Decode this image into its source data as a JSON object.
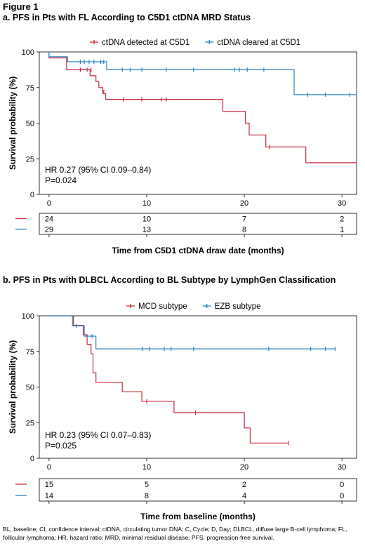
{
  "figure_label": "Figure 1",
  "colors": {
    "red": "#c8283c",
    "blue": "#2a86c4"
  },
  "footnote": "BL, baseline; CI, confidence interval; ctDNA, circulating tumor DNA; C, Cycle; D, Day; DLBCL, diffuse large B-cell lymphoma; FL, follicular lymphoma; HR, hazard ratio; MRD, minimal residual disease; PFS, progression-free survival.",
  "chart_data": [
    {
      "type": "line",
      "title": "a. PFS in Pts with FL According to C5D1 ctDNA MRD Status",
      "xlabel": "Time from C5D1 ctDNA draw date (months)",
      "ylabel": "Survival probability (%)",
      "xlim": [
        -1,
        31.5
      ],
      "ylim": [
        0,
        100
      ],
      "xticks": [
        0,
        10,
        20,
        30
      ],
      "yticks": [
        0,
        25,
        50,
        75,
        100
      ],
      "legend_position": "top",
      "annotation_hr": "HR 0.27 (95% CI 0.09–0.84)",
      "annotation_p": "P=0.024",
      "series": [
        {
          "name": "ctDNA detected at C5D1",
          "color": "#c8283c",
          "steps": [
            [
              0,
              100
            ],
            [
              0,
              95.8
            ],
            [
              1.8,
              95.8
            ],
            [
              1.8,
              87.5
            ],
            [
              4.2,
              87.5
            ],
            [
              4.2,
              83.3
            ],
            [
              4.8,
              83.3
            ],
            [
              4.8,
              79.2
            ],
            [
              5.1,
              79.2
            ],
            [
              5.1,
              75.0
            ],
            [
              5.5,
              75.0
            ],
            [
              5.5,
              70.8
            ],
            [
              5.8,
              70.8
            ],
            [
              5.8,
              66.7
            ],
            [
              17.8,
              66.7
            ],
            [
              17.8,
              58.3
            ],
            [
              20.1,
              58.3
            ],
            [
              20.1,
              50.0
            ],
            [
              20.5,
              50.0
            ],
            [
              20.5,
              41.7
            ],
            [
              22.2,
              41.7
            ],
            [
              22.2,
              33.3
            ],
            [
              26.3,
              33.3
            ],
            [
              26.3,
              22.2
            ],
            [
              31.5,
              22.2
            ]
          ],
          "censors": [
            [
              3.2,
              87.5
            ],
            [
              3.9,
              87.5
            ],
            [
              4.3,
              87.5
            ],
            [
              5.6,
              72.0
            ],
            [
              7.6,
              66.7
            ],
            [
              9.5,
              66.7
            ],
            [
              11.5,
              66.7
            ],
            [
              12.0,
              66.7
            ],
            [
              22.6,
              33.3
            ]
          ],
          "at_risk": [
            24,
            10,
            7,
            2
          ]
        },
        {
          "name": "ctDNA cleared at C5D1",
          "color": "#2a86c4",
          "steps": [
            [
              0,
              100
            ],
            [
              0,
              96.6
            ],
            [
              1.9,
              96.6
            ],
            [
              1.9,
              93.1
            ],
            [
              5.9,
              93.1
            ],
            [
              5.9,
              87.5
            ],
            [
              25.1,
              87.5
            ],
            [
              25.1,
              70.0
            ],
            [
              31.5,
              70.0
            ]
          ],
          "censors": [
            [
              0,
              98
            ],
            [
              3.2,
              93.1
            ],
            [
              3.6,
              93.1
            ],
            [
              4.1,
              93.1
            ],
            [
              4.6,
              93.1
            ],
            [
              5.3,
              93.1
            ],
            [
              5.6,
              93.1
            ],
            [
              7.5,
              87.5
            ],
            [
              8.3,
              87.5
            ],
            [
              9.5,
              87.5
            ],
            [
              12.0,
              87.5
            ],
            [
              14.8,
              87.5
            ],
            [
              19.0,
              87.5
            ],
            [
              19.5,
              87.5
            ],
            [
              20.3,
              87.5
            ],
            [
              22.0,
              87.5
            ],
            [
              26.5,
              70.0
            ],
            [
              28.3,
              70.0
            ],
            [
              30.8,
              70.0
            ]
          ],
          "at_risk": [
            29,
            13,
            8,
            1
          ]
        }
      ]
    },
    {
      "type": "line",
      "title": "b. PFS in Pts with DLBCL According to BL Subtype by LymphGen Classification",
      "xlabel": "Time from baseline (months)",
      "ylabel": "Survival probability (%)",
      "xlim": [
        -1,
        31.5
      ],
      "ylim": [
        0,
        100
      ],
      "xticks": [
        0,
        10,
        20,
        30
      ],
      "yticks": [
        0,
        25,
        50,
        75,
        100
      ],
      "legend_position": "top",
      "annotation_hr": "HR 0.23 (95% CI 0.07–0.83)",
      "annotation_p": "P=0.025",
      "series": [
        {
          "name": "MCD subtype",
          "color": "#c8283c",
          "steps": [
            [
              0,
              100
            ],
            [
              2.5,
              100
            ],
            [
              2.5,
              93.3
            ],
            [
              3.5,
              93.3
            ],
            [
              3.5,
              86.7
            ],
            [
              3.9,
              86.7
            ],
            [
              3.9,
              80.0
            ],
            [
              4.3,
              80.0
            ],
            [
              4.3,
              73.3
            ],
            [
              4.5,
              73.3
            ],
            [
              4.5,
              60.0
            ],
            [
              4.8,
              60.0
            ],
            [
              4.8,
              53.3
            ],
            [
              7.5,
              53.3
            ],
            [
              7.5,
              46.7
            ],
            [
              9.5,
              46.7
            ],
            [
              9.5,
              40.0
            ],
            [
              12.8,
              40.0
            ],
            [
              12.8,
              32.0
            ],
            [
              20.0,
              32.0
            ],
            [
              20.0,
              21.3
            ],
            [
              20.6,
              21.3
            ],
            [
              20.6,
              10.7
            ],
            [
              24.5,
              10.7
            ]
          ],
          "censors": [
            [
              10.0,
              40.0
            ],
            [
              15.0,
              32.0
            ],
            [
              24.5,
              10.7
            ]
          ],
          "at_risk": [
            15,
            5,
            2,
            0
          ]
        },
        {
          "name": "EZB subtype",
          "color": "#2a86c4",
          "steps": [
            [
              0,
              100
            ],
            [
              2.4,
              100
            ],
            [
              2.4,
              92.9
            ],
            [
              3.6,
              92.9
            ],
            [
              3.6,
              85.7
            ],
            [
              4.8,
              85.7
            ],
            [
              4.8,
              76.8
            ],
            [
              29.3,
              76.8
            ]
          ],
          "censors": [
            [
              2.8,
              92.9
            ],
            [
              4.4,
              85.7
            ],
            [
              9.6,
              76.8
            ],
            [
              10.3,
              76.8
            ],
            [
              11.8,
              76.8
            ],
            [
              12.5,
              76.8
            ],
            [
              14.8,
              76.8
            ],
            [
              22.5,
              76.8
            ],
            [
              26.8,
              76.8
            ],
            [
              28.3,
              76.8
            ],
            [
              29.3,
              76.8
            ]
          ],
          "at_risk": [
            14,
            8,
            4,
            0
          ]
        }
      ]
    }
  ]
}
